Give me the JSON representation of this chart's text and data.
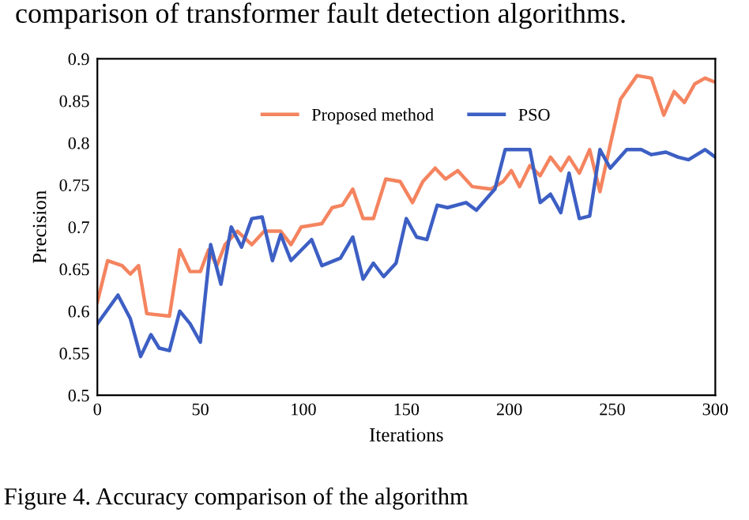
{
  "chart_data": {
    "type": "line",
    "xlabel": "Iterations",
    "ylabel": "Precision",
    "annotations": [
      "comparison of transformer fault detection algorithms.",
      "Figure 4. Accuracy comparison of the algorithm"
    ],
    "xlim": [
      0,
      300
    ],
    "xticks": [
      0,
      50,
      100,
      150,
      200,
      250,
      300
    ],
    "ylim": [
      0.5,
      0.9
    ],
    "yticks": [
      0.5,
      0.55,
      0.6,
      0.65,
      0.7,
      0.75,
      0.8,
      0.85,
      0.9
    ],
    "grid": false,
    "legend": "top",
    "marker": "none",
    "line_style": "solid",
    "series": [
      {
        "name": "Proposed method",
        "color": "#f4845f",
        "x": [
          0,
          5,
          12,
          16,
          20,
          24,
          35,
          40,
          45,
          50,
          54,
          58,
          62,
          68,
          75,
          81,
          89,
          94,
          99,
          109,
          114,
          119,
          124,
          129,
          134,
          140,
          147,
          153,
          158,
          164,
          169,
          175,
          182,
          191,
          197,
          201,
          205,
          210,
          215,
          220,
          225,
          229,
          234,
          239,
          244,
          249,
          254,
          262,
          269,
          275,
          280,
          285,
          290,
          295,
          300
        ],
        "values": [
          0.611,
          0.66,
          0.654,
          0.644,
          0.654,
          0.597,
          0.594,
          0.673,
          0.647,
          0.647,
          0.673,
          0.654,
          0.679,
          0.695,
          0.679,
          0.695,
          0.695,
          0.679,
          0.7,
          0.704,
          0.723,
          0.726,
          0.745,
          0.71,
          0.71,
          0.757,
          0.754,
          0.729,
          0.754,
          0.77,
          0.757,
          0.767,
          0.748,
          0.745,
          0.754,
          0.767,
          0.748,
          0.773,
          0.761,
          0.783,
          0.767,
          0.783,
          0.764,
          0.792,
          0.742,
          0.798,
          0.852,
          0.88,
          0.877,
          0.833,
          0.861,
          0.848,
          0.87,
          0.877,
          0.872
        ]
      },
      {
        "name": "PSO",
        "color": "#3d5fc4",
        "x": [
          0,
          10,
          16,
          21,
          26,
          30,
          35,
          40,
          45,
          50,
          55,
          60,
          65,
          70,
          75,
          80,
          85,
          89,
          94,
          104,
          109,
          118,
          124,
          129,
          134,
          139,
          145,
          150,
          155,
          160,
          165,
          170,
          179,
          184,
          193,
          198,
          210,
          215,
          220,
          225,
          229,
          234,
          239,
          244,
          249,
          257,
          264,
          269,
          276,
          282,
          287,
          295,
          300
        ],
        "values": [
          0.585,
          0.619,
          0.591,
          0.546,
          0.572,
          0.556,
          0.553,
          0.6,
          0.585,
          0.563,
          0.679,
          0.632,
          0.7,
          0.676,
          0.71,
          0.712,
          0.66,
          0.691,
          0.66,
          0.685,
          0.654,
          0.663,
          0.688,
          0.638,
          0.657,
          0.641,
          0.657,
          0.71,
          0.688,
          0.685,
          0.726,
          0.723,
          0.729,
          0.72,
          0.745,
          0.792,
          0.792,
          0.729,
          0.739,
          0.717,
          0.764,
          0.71,
          0.713,
          0.792,
          0.77,
          0.792,
          0.792,
          0.786,
          0.789,
          0.783,
          0.78,
          0.792,
          0.783
        ]
      }
    ]
  }
}
